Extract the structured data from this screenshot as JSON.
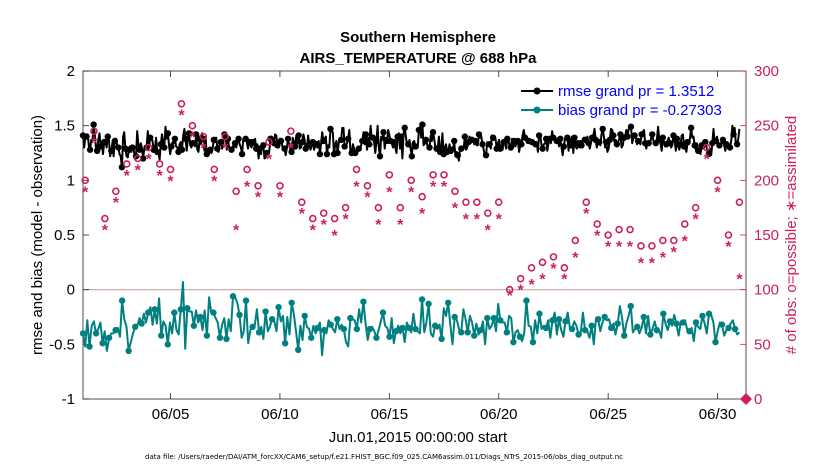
{
  "chart_data": {
    "type": "line",
    "title": "Southern Hemisphere",
    "subtitle": "AIRS_TEMPERATURE @ 688 hPa",
    "xlabel": "Jun.01,2015 00:00:00 start",
    "ylabel": "rmse and bias (model - observation)",
    "y2label": "# of obs: o=possible; ∗=assimilated",
    "footnote": "data file: /Users/raeder/DAI/ATM_forcXX/CAM6_setup/f.e21.FHIST_BGC.f09_025.CAM6assim.011/Diags_NTrS_2015-06/obs_diag_output.nc",
    "xlim": [
      1,
      31.3
    ],
    "ylim": [
      -1,
      2
    ],
    "y2lim": [
      0,
      300
    ],
    "xticks": [
      5,
      10,
      15,
      20,
      25,
      30
    ],
    "xtick_labels": [
      "06/05",
      "06/10",
      "06/15",
      "06/20",
      "06/25",
      "06/30"
    ],
    "yticks": [
      -1,
      -0.5,
      0,
      0.5,
      1,
      1.5,
      2
    ],
    "ytick_labels": [
      "-1",
      "-0.5",
      "0",
      "0.5",
      "1",
      "1.5",
      "2"
    ],
    "y2ticks": [
      0,
      50,
      100,
      150,
      200,
      250,
      300
    ],
    "y2tick_labels": [
      "0",
      "50",
      "100",
      "150",
      "200",
      "250",
      "300"
    ],
    "legend_position": "top-right",
    "colors": {
      "rmse": "#000000",
      "bias": "#008080",
      "obs": "#cc1f5c",
      "zero_line": "#c8a6a6"
    },
    "series": [
      {
        "name": "rmse grand pr = 1.3512",
        "axis": "left",
        "color": "#000000",
        "marker": "circle",
        "values": [
          1.41,
          1.3,
          1.4,
          1.4,
          1.42,
          1.31,
          1.28,
          1.37,
          1.35,
          1.51,
          1.42,
          1.29,
          1.27,
          1.37,
          1.43,
          1.31,
          1.33,
          1.24,
          1.35,
          1.37,
          1.3,
          1.4,
          1.37,
          1.22,
          1.27,
          1.35,
          1.22,
          1.36,
          1.38,
          1.32,
          1.3,
          1.24,
          1.22,
          1.12,
          1.4,
          1.44,
          1.29,
          1.22,
          1.21,
          1.28,
          1.31,
          1.26,
          1.3,
          1.28,
          1.2,
          1.22,
          1.45,
          1.32,
          1.28,
          1.34,
          1.3,
          1.2,
          1.29,
          1.31,
          1.3,
          1.45,
          1.3,
          1.39,
          1.38,
          1.36,
          1.28,
          1.29,
          1.39,
          1.26,
          1.25,
          1.19,
          1.33,
          1.42,
          1.35,
          1.3,
          1.49,
          1.38,
          1.43,
          1.32,
          1.24,
          1.31,
          1.35,
          1.34,
          1.38,
          1.31,
          1.3,
          1.26,
          1.33,
          1.35,
          1.28,
          1.41,
          1.47,
          1.38,
          1.27,
          1.38,
          1.43,
          1.32,
          1.3,
          1.34,
          1.35,
          1.31,
          1.42,
          1.28,
          1.26,
          1.38,
          1.33,
          1.43,
          1.38,
          1.27,
          1.4,
          1.24,
          1.27,
          1.24,
          1.28,
          1.25,
          1.29,
          1.37,
          1.35,
          1.39,
          1.29,
          1.26,
          1.34,
          1.35,
          1.29,
          1.34,
          1.42,
          1.39,
          1.28,
          1.38,
          1.3,
          1.3,
          1.28,
          1.31,
          1.3,
          1.34,
          1.3,
          1.36,
          1.38,
          1.33,
          1.3,
          1.24,
          1.38,
          1.36,
          1.38,
          1.35,
          1.29,
          1.35,
          1.33,
          1.3,
          1.35,
          1.32,
          1.38,
          1.29,
          1.33,
          1.2,
          1.29,
          1.24,
          1.34,
          1.32,
          1.2,
          1.21,
          1.25,
          1.23,
          1.26,
          1.38,
          1.4,
          1.39,
          1.34,
          1.42,
          1.41,
          1.32,
          1.3,
          1.38,
          1.36,
          1.32,
          1.29,
          1.29,
          1.23,
          1.3,
          1.38,
          1.32,
          1.28,
          1.26,
          1.39,
          1.35,
          1.31,
          1.41,
          1.34,
          1.41,
          1.29,
          1.3,
          1.35,
          1.42,
          1.37,
          1.29,
          1.29,
          1.41,
          1.33,
          1.28,
          1.32,
          1.35,
          1.28,
          1.31,
          1.33,
          1.3,
          1.36,
          1.24,
          1.34,
          1.44,
          1.36,
          1.38,
          1.4,
          1.24,
          1.32,
          1.3,
          1.47,
          1.45,
          1.44,
          1.24,
          1.33,
          1.36,
          1.25,
          1.34,
          1.38,
          1.37,
          1.48,
          1.48,
          1.31,
          1.31,
          1.34,
          1.38,
          1.46,
          1.25,
          1.25,
          1.33,
          1.29,
          1.25,
          1.28,
          1.27,
          1.29,
          1.28,
          1.32,
          1.36,
          1.44,
          1.33,
          1.42,
          1.28,
          1.39,
          1.33,
          1.5,
          1.38,
          1.39,
          1.35,
          1.25,
          1.36,
          1.5,
          1.3,
          1.22,
          1.4,
          1.37,
          1.44,
          1.29,
          1.39,
          1.36,
          1.46,
          1.41,
          1.36,
          1.34,
          1.3,
          1.35,
          1.3,
          1.25,
          1.4,
          1.43,
          1.29,
          1.4,
          1.2,
          1.43,
          1.48,
          1.4,
          1.31,
          1.33,
          1.37,
          1.29,
          1.22,
          1.35,
          1.36,
          1.31,
          1.29,
          1.3,
          1.46,
          1.49,
          1.39,
          1.51,
          1.32,
          1.34,
          1.37,
          1.33,
          1.29,
          1.3,
          1.41,
          1.36,
          1.44,
          1.38,
          1.3,
          1.29,
          1.29,
          1.4,
          1.26,
          1.29,
          1.43,
          1.24,
          1.3,
          1.33,
          1.26,
          1.26,
          1.33,
          1.27,
          1.3,
          1.28,
          1.36,
          1.22,
          1.26,
          1.23,
          1.18,
          1.3,
          1.29,
          1.3,
          1.29,
          1.4,
          1.28,
          1.3,
          1.35,
          1.4,
          1.34,
          1.37,
          1.37,
          1.33,
          1.36,
          1.32,
          1.32,
          1.42,
          1.39,
          1.4,
          1.33,
          1.28,
          1.22,
          1.23,
          1.35,
          1.33,
          1.33,
          1.29,
          1.41,
          1.39,
          1.4,
          1.38,
          1.29,
          1.33,
          1.37,
          1.29,
          1.32,
          1.28,
          1.35,
          1.35,
          1.29,
          1.38,
          1.37,
          1.31,
          1.3,
          1.38,
          1.3,
          1.36,
          1.31,
          1.35,
          1.36,
          1.26,
          1.32,
          1.33,
          1.41,
          1.46,
          1.39,
          1.37,
          1.36,
          1.36,
          1.38,
          1.36,
          1.35,
          1.34,
          1.33,
          1.33,
          1.35,
          1.26,
          1.41,
          1.41,
          1.33,
          1.29,
          1.33,
          1.34,
          1.38,
          1.27,
          1.34,
          1.38,
          1.34,
          1.45,
          1.39,
          1.37,
          1.36,
          1.36,
          1.36,
          1.31,
          1.38,
          1.3,
          1.23,
          1.31,
          1.38,
          1.38,
          1.39,
          1.27,
          1.39,
          1.32,
          1.4,
          1.25,
          1.39,
          1.31,
          1.29,
          1.34,
          1.3,
          1.36,
          1.32,
          1.38,
          1.39,
          1.37,
          1.34,
          1.4,
          1.34,
          1.29,
          1.34,
          1.39,
          1.41,
          1.47,
          1.37,
          1.3,
          1.35,
          1.35,
          1.32,
          1.42,
          1.47,
          1.4,
          1.3,
          1.35,
          1.26,
          1.29,
          1.37,
          1.47,
          1.46,
          1.41,
          1.35,
          1.37,
          1.33,
          1.35,
          1.38,
          1.42,
          1.3,
          1.32,
          1.39,
          1.4,
          1.46,
          1.4,
          1.47,
          1.48,
          1.49,
          1.34,
          1.39,
          1.41,
          1.41,
          1.33,
          1.36,
          1.35,
          1.33,
          1.42,
          1.44,
          1.46,
          1.34,
          1.29,
          1.35,
          1.34,
          1.34,
          1.38,
          1.42,
          1.36,
          1.35,
          1.34,
          1.38,
          1.49,
          1.37,
          1.34,
          1.27,
          1.39,
          1.35,
          1.31,
          1.33,
          1.36,
          1.39,
          1.34,
          1.3,
          1.32,
          1.41,
          1.37,
          1.27,
          1.38,
          1.31,
          1.28,
          1.33,
          1.41,
          1.42,
          1.31,
          1.3,
          1.26,
          1.35,
          1.33,
          1.38,
          1.48,
          1.39,
          1.4,
          1.32,
          1.28,
          1.34,
          1.27,
          1.29,
          1.24,
          1.32,
          1.29,
          1.3,
          1.35,
          1.31,
          1.25,
          1.24,
          1.29,
          1.23,
          1.34,
          1.47,
          1.34,
          1.36,
          1.4,
          1.32,
          1.32,
          1.34,
          1.34,
          1.37,
          1.32,
          1.27,
          1.33,
          1.33,
          1.32,
          1.3,
          1.36,
          1.5,
          1.42,
          1.48,
          1.33,
          1.33,
          1.38,
          1.47
        ]
      },
      {
        "name": "bias grand pr = -0.27303",
        "axis": "left",
        "color": "#008080",
        "marker": "circle",
        "values": [
          -0.4,
          -0.52,
          -0.28,
          -0.52,
          -0.33,
          -0.29,
          -0.4,
          -0.36,
          -0.3,
          -0.49,
          -0.38,
          -0.56,
          -0.44,
          -0.4,
          -0.4,
          -0.37,
          -0.35,
          -0.43,
          -0.1,
          -0.27,
          -0.34,
          -0.56,
          -0.48,
          -0.4,
          -0.34,
          -0.33,
          -0.26,
          -0.31,
          -0.22,
          -0.3,
          -0.21,
          -0.16,
          -0.32,
          -0.18,
          -0.31,
          -0.08,
          -0.42,
          -0.29,
          -0.33,
          -0.5,
          -0.3,
          -0.4,
          -0.21,
          -0.37,
          -0.41,
          -0.18,
          0.07,
          -0.54,
          -0.17,
          -0.2,
          -0.2,
          -0.33,
          -0.19,
          -0.3,
          -0.25,
          -0.37,
          -0.19,
          -0.42,
          -0.07,
          -0.21,
          -0.21,
          -0.26,
          -0.3,
          -0.44,
          -0.32,
          -0.26,
          -0.45,
          -0.27,
          -0.38,
          -0.06,
          -0.07,
          -0.12,
          -0.23,
          -0.44,
          -0.38,
          -0.1,
          -0.49,
          -0.37,
          -0.34,
          -0.33,
          -0.18,
          -0.39,
          -0.34,
          -0.45,
          -0.2,
          -0.38,
          -0.34,
          -0.27,
          -0.29,
          -0.38,
          -0.16,
          -0.29,
          -0.24,
          -0.49,
          -0.25,
          -0.41,
          -0.12,
          -0.22,
          -0.38,
          -0.55,
          -0.33,
          -0.46,
          -0.24,
          -0.34,
          -0.36,
          -0.44,
          -0.33,
          -0.4,
          -0.35,
          -0.3,
          -0.6,
          -0.37,
          -0.4,
          -0.28,
          -0.32,
          -0.36,
          -0.39,
          -0.27,
          -0.36,
          -0.32,
          -0.36,
          -0.48,
          -0.52,
          -0.26,
          -0.27,
          -0.28,
          -0.36,
          -0.18,
          -0.3,
          -0.11,
          -0.31,
          -0.46,
          -0.36,
          -0.34,
          -0.38,
          -0.44,
          -0.37,
          -0.29,
          -0.21,
          -0.33,
          -0.35,
          -0.43,
          -0.26,
          -0.49,
          -0.38,
          -0.33,
          -0.4,
          -0.35,
          -0.48,
          -0.3,
          -0.35,
          -0.39,
          -0.22,
          -0.36,
          -0.38,
          -0.4,
          -0.09,
          -0.39,
          -0.3,
          -0.13,
          -0.4,
          -0.43,
          -0.33,
          -0.36,
          -0.32,
          -0.45,
          -0.17,
          -0.24,
          -0.12,
          -0.32,
          -0.5,
          -0.25,
          -0.28,
          -0.36,
          -0.39,
          -0.18,
          -0.27,
          -0.39,
          -0.24,
          -0.3,
          -0.42,
          -0.31,
          -0.41,
          -0.37,
          -0.29,
          -0.5,
          -0.26,
          -0.36,
          -0.33,
          -0.26,
          -0.38,
          -0.13,
          -0.28,
          -0.3,
          -0.3,
          -0.39,
          -0.24,
          -0.26,
          -0.48,
          -0.39,
          -0.37,
          -0.43,
          -0.47,
          -0.4,
          -0.1,
          -0.33,
          -0.34,
          -0.48,
          -0.28,
          -0.4,
          -0.22,
          -0.36,
          -0.33,
          -0.35,
          -0.28,
          -0.44,
          -0.28,
          -0.21,
          -0.41,
          -0.27,
          -0.37,
          -0.43,
          -0.29,
          -0.21,
          -0.35,
          -0.36,
          -0.29,
          -0.33,
          -0.41,
          -0.39,
          -0.21,
          -0.37,
          -0.38,
          -0.44,
          -0.33,
          -0.5,
          -0.26,
          -0.27,
          -0.38,
          -0.3,
          -0.25,
          -0.28,
          -0.27,
          -0.35,
          -0.31,
          -0.41,
          -0.31,
          -0.15,
          -0.26,
          -0.42,
          -0.31,
          -0.24,
          -0.15,
          -0.39,
          -0.36,
          -0.34,
          -0.4,
          -0.35,
          -0.25,
          -0.4,
          -0.24,
          -0.41,
          -0.36,
          -0.29,
          -0.37,
          -0.37,
          -0.44,
          -0.22,
          -0.31,
          -0.37,
          -0.29,
          -0.33,
          -0.23,
          -0.31,
          -0.42,
          -0.3,
          -0.3,
          -0.28,
          -0.37,
          -0.38,
          -0.35,
          -0.47,
          -0.3,
          -0.34,
          -0.36,
          -0.24,
          -0.31,
          -0.4,
          -0.22,
          -0.23,
          -0.3,
          -0.48,
          -0.38,
          -0.3,
          -0.32,
          -0.42,
          -0.37,
          -0.35,
          -0.31,
          -0.28,
          -0.36,
          -0.41,
          -0.39
        ]
      },
      {
        "name": "possible",
        "axis": "right",
        "color": "#cc1f5c",
        "marker": "o",
        "x": [
          1.1,
          1.5,
          2.0,
          2.5,
          3.0,
          3.5,
          4.0,
          4.5,
          5.0,
          5.5,
          6.0,
          6.5,
          7.0,
          7.5,
          8.0,
          8.5,
          9.0,
          9.5,
          10.0,
          10.5,
          11.0,
          11.5,
          12.0,
          12.5,
          13.0,
          13.5,
          14.0,
          14.5,
          15.0,
          15.5,
          16.0,
          16.5,
          17.0,
          17.5,
          18.0,
          18.5,
          19.0,
          19.5,
          20.0,
          20.5,
          21.0,
          21.5,
          22.0,
          22.5,
          23.0,
          23.5,
          24.0,
          24.5,
          25.0,
          25.5,
          26.0,
          26.5,
          27.0,
          27.5,
          28.0,
          28.5,
          29.0,
          29.5,
          30.0,
          30.5,
          31.0
        ],
        "values": [
          200,
          245,
          165,
          190,
          215,
          220,
          230,
          215,
          210,
          270,
          250,
          240,
          210,
          240,
          190,
          210,
          195,
          235,
          195,
          245,
          180,
          165,
          170,
          165,
          175,
          210,
          195,
          175,
          205,
          175,
          200,
          185,
          205,
          205,
          190,
          180,
          180,
          170,
          180,
          100,
          110,
          120,
          125,
          130,
          120,
          145,
          180,
          160,
          150,
          155,
          155,
          140,
          140,
          145,
          145,
          160,
          175,
          230,
          200,
          150,
          180
        ]
      },
      {
        "name": "assimilated",
        "axis": "right",
        "color": "#cc1f5c",
        "marker": "*",
        "x": [
          1.1,
          1.5,
          2.0,
          2.5,
          3.0,
          3.5,
          4.0,
          4.5,
          5.0,
          5.5,
          6.0,
          6.5,
          7.0,
          7.5,
          8.0,
          8.5,
          9.0,
          9.5,
          10.0,
          10.5,
          11.0,
          11.5,
          12.0,
          12.5,
          13.0,
          13.5,
          14.0,
          14.5,
          15.0,
          15.5,
          16.0,
          16.5,
          17.0,
          17.5,
          18.0,
          18.5,
          19.0,
          19.5,
          20.0,
          20.5,
          21.0,
          21.5,
          22.0,
          22.5,
          23.0,
          23.5,
          24.0,
          24.5,
          25.0,
          25.5,
          26.0,
          26.5,
          27.0,
          27.5,
          28.0,
          28.5,
          29.0,
          29.5,
          30.0,
          30.5,
          31.0
        ],
        "values": [
          190,
          235,
          155,
          180,
          205,
          210,
          220,
          205,
          200,
          260,
          240,
          230,
          200,
          230,
          155,
          195,
          185,
          220,
          185,
          230,
          170,
          155,
          160,
          150,
          165,
          195,
          185,
          160,
          190,
          160,
          190,
          170,
          195,
          195,
          175,
          165,
          165,
          155,
          165,
          95,
          100,
          105,
          110,
          120,
          110,
          130,
          170,
          150,
          140,
          140,
          140,
          125,
          125,
          130,
          135,
          145,
          165,
          220,
          190,
          140,
          110
        ]
      }
    ]
  }
}
